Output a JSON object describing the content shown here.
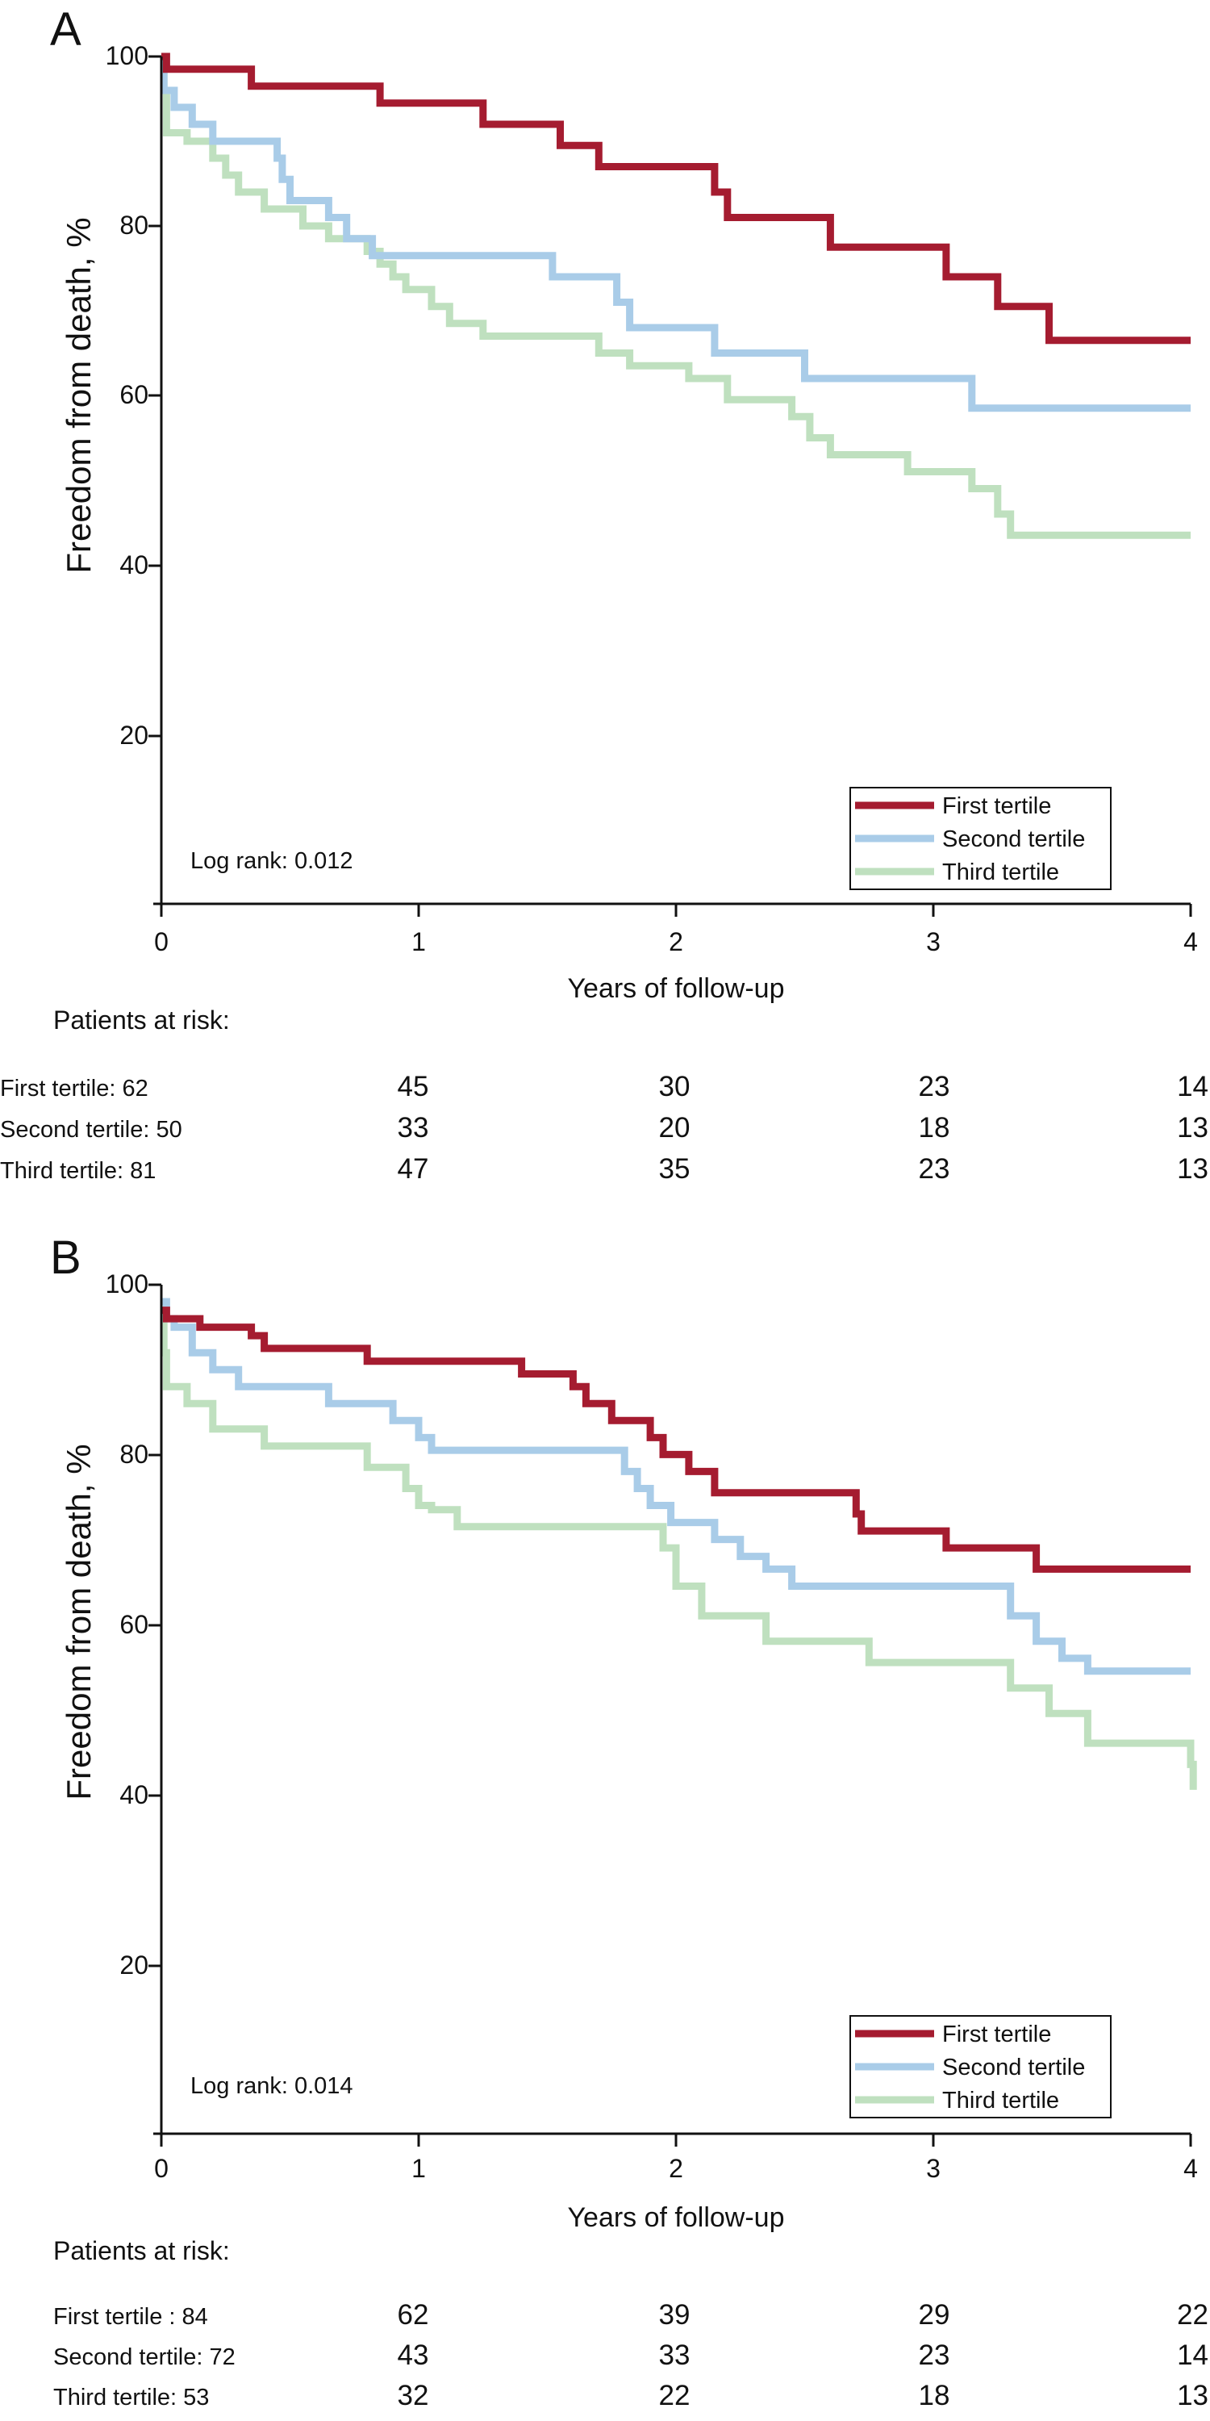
{
  "chart_data": [
    {
      "panel": "A",
      "type": "line",
      "xlabel": "Years of follow-up",
      "ylabel": "Freedom from death, %",
      "xlim": [
        0,
        4
      ],
      "ylim": [
        0,
        100
      ],
      "xticks": [
        "0",
        "1",
        "2",
        "3",
        "4"
      ],
      "yticks": [
        "20",
        "40",
        "60",
        "80",
        "100"
      ],
      "annotation": "Log rank: 0.012",
      "legend_position": "bottom-right",
      "series": [
        {
          "name": "First tertile",
          "color": "#a51c30",
          "x": [
            0,
            0.02,
            0.35,
            0.85,
            1.25,
            1.55,
            1.7,
            2.15,
            2.2,
            2.6,
            3.05,
            3.25,
            3.45,
            4.0
          ],
          "y": [
            100,
            98.5,
            96.5,
            94.5,
            92,
            89.5,
            87,
            84,
            81,
            77.5,
            74,
            70.5,
            66.5,
            66.5
          ]
        },
        {
          "name": "Second tertile",
          "color": "#a9cce8",
          "x": [
            0,
            0.01,
            0.05,
            0.12,
            0.2,
            0.45,
            0.47,
            0.5,
            0.65,
            0.72,
            0.82,
            1.52,
            1.77,
            1.82,
            2.15,
            2.5,
            3.15,
            4.0
          ],
          "y": [
            100,
            96,
            94,
            92,
            90,
            88,
            85.5,
            83,
            81,
            78.5,
            76.5,
            74,
            71,
            68,
            65,
            62,
            58.5,
            58.5
          ]
        },
        {
          "name": "Third tertile",
          "color": "#bfe0bf",
          "x": [
            0,
            0.01,
            0.02,
            0.1,
            0.2,
            0.25,
            0.3,
            0.4,
            0.55,
            0.65,
            0.8,
            0.85,
            0.9,
            0.95,
            1.05,
            1.12,
            1.25,
            1.7,
            1.82,
            2.05,
            2.2,
            2.45,
            2.52,
            2.6,
            2.9,
            3.15,
            3.25,
            3.3,
            4.0
          ],
          "y": [
            100,
            96,
            91,
            90,
            88,
            86,
            84,
            82,
            80,
            78.5,
            77,
            75.5,
            74,
            72.5,
            70.5,
            68.5,
            67,
            65,
            63.5,
            62,
            59.5,
            57.5,
            55,
            53,
            51,
            49,
            46,
            43.5,
            43.5
          ]
        }
      ]
    },
    {
      "panel": "B",
      "type": "line",
      "xlabel": "Years of follow-up",
      "ylabel": "Freedom from  death, %",
      "xlim": [
        0,
        4
      ],
      "ylim": [
        0,
        100
      ],
      "xticks": [
        "0",
        "1",
        "2",
        "3",
        "4"
      ],
      "yticks": [
        "20",
        "40",
        "60",
        "80",
        "100"
      ],
      "annotation": "Log rank: 0.014",
      "legend_position": "bottom-right",
      "series": [
        {
          "name": "First tertile",
          "color": "#a51c30",
          "x": [
            0,
            0.02,
            0.15,
            0.35,
            0.4,
            0.8,
            1.4,
            1.6,
            1.65,
            1.75,
            1.9,
            1.95,
            2.05,
            2.15,
            2.7,
            2.72,
            3.05,
            3.4,
            4.0
          ],
          "y": [
            97,
            96,
            95,
            94,
            92.5,
            91,
            89.5,
            88,
            86,
            84,
            82,
            80,
            78,
            75.5,
            73,
            71,
            69,
            66.5,
            66.5
          ]
        },
        {
          "name": "Second tertile",
          "color": "#a9cce8",
          "x": [
            0,
            0.02,
            0.05,
            0.12,
            0.2,
            0.3,
            0.65,
            0.9,
            1.0,
            1.05,
            1.8,
            1.85,
            1.9,
            1.98,
            2.15,
            2.25,
            2.35,
            2.45,
            3.3,
            3.4,
            3.5,
            3.6,
            4.0
          ],
          "y": [
            98,
            96,
            95,
            92,
            90,
            88,
            86,
            84,
            82,
            80.5,
            78,
            76,
            74,
            72,
            70,
            68,
            66.5,
            64.5,
            61,
            58,
            56,
            54.5,
            54.5
          ]
        },
        {
          "name": "Third tertile",
          "color": "#bfe0bf",
          "x": [
            0,
            0.01,
            0.02,
            0.1,
            0.2,
            0.4,
            0.8,
            0.95,
            1.0,
            1.05,
            1.15,
            1.95,
            2.0,
            2.1,
            2.35,
            2.75,
            3.3,
            3.45,
            3.6,
            4.0,
            4.01
          ],
          "y": [
            97,
            92,
            88,
            86,
            83,
            81,
            78.5,
            76,
            74,
            73.5,
            71.5,
            69,
            64.5,
            61,
            58,
            55.5,
            52.5,
            49.5,
            46,
            43.5,
            40.5
          ]
        }
      ]
    }
  ],
  "risk_tables": [
    {
      "header": "Patients at risk:",
      "rows": [
        {
          "label": "First tertile: 62",
          "counts": [
            "45",
            "30",
            "23",
            "14"
          ]
        },
        {
          "label": "Second tertile: 50",
          "counts": [
            "33",
            "20",
            "18",
            "13"
          ]
        },
        {
          "label": "Third tertile: 81",
          "counts": [
            "47",
            "35",
            "23",
            "13"
          ]
        }
      ]
    },
    {
      "header": "Patients at risk:",
      "rows": [
        {
          "label": "First tertile : 84",
          "counts": [
            "62",
            "39",
            "29",
            "22"
          ]
        },
        {
          "label": "Second tertile: 72",
          "counts": [
            "43",
            "33",
            "23",
            "14"
          ]
        },
        {
          "label": "Third tertile: 53",
          "counts": [
            "32",
            "22",
            "18",
            "13"
          ]
        }
      ]
    }
  ]
}
